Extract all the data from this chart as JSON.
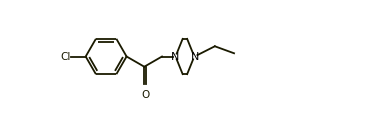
{
  "line_color": "#1a1a00",
  "bg_color": "#ffffff",
  "lw": 1.3,
  "figsize": [
    3.77,
    1.15
  ],
  "dpi": 100,
  "cl_label": "Cl",
  "n1_label": "N",
  "n2_label": "N",
  "o_label": "O",
  "n_color": "#000000",
  "xlim": [
    0.0,
    9.5
  ],
  "ylim": [
    -2.0,
    2.0
  ]
}
